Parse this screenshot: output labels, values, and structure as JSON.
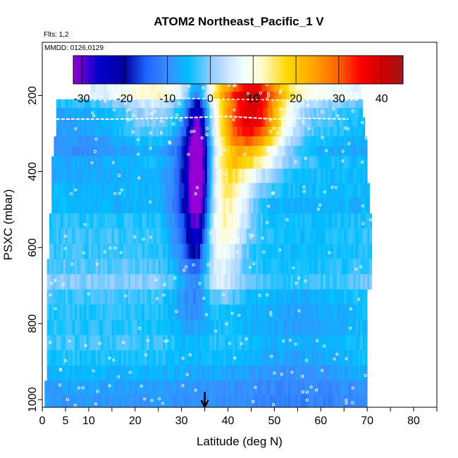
{
  "chart_data": {
    "type": "heatmap",
    "title": "ATOM2 Northeast_Pacific_1 V",
    "flights_label": "Flts: 1,2",
    "dates_label": "MMDD: 0126,0129",
    "xlabel": "Latitude (deg N)",
    "ylabel": "PSXC (mbar)",
    "xlim": [
      0,
      85
    ],
    "ylim": [
      1020,
      60
    ],
    "x_ticks": [
      0,
      5,
      10,
      20,
      30,
      40,
      50,
      60,
      70,
      80
    ],
    "y_ticks": [
      200,
      400,
      600,
      800,
      1000
    ],
    "colorbar": {
      "min": -32,
      "max": 45,
      "ticks": [
        -30,
        -20,
        -10,
        0,
        10,
        20,
        30,
        40
      ],
      "stops": [
        {
          "v": -32,
          "c": "#9400d3"
        },
        {
          "v": -26,
          "c": "#0000cd"
        },
        {
          "v": -20,
          "c": "#0000a0"
        },
        {
          "v": -15,
          "c": "#1e64ff"
        },
        {
          "v": -10,
          "c": "#3a8cff"
        },
        {
          "v": -5,
          "c": "#00bfff"
        },
        {
          "v": 0,
          "c": "#8ecbff"
        },
        {
          "v": 5,
          "c": "#d6ecff"
        },
        {
          "v": 8,
          "c": "#f4ffff"
        },
        {
          "v": 12,
          "c": "#fffacd"
        },
        {
          "v": 18,
          "c": "#ffd700"
        },
        {
          "v": 24,
          "c": "#ffa500"
        },
        {
          "v": 30,
          "c": "#ff6000"
        },
        {
          "v": 35,
          "c": "#ff0000"
        },
        {
          "v": 40,
          "c": "#d00000"
        },
        {
          "v": 45,
          "c": "#a01818"
        }
      ]
    },
    "marker": {
      "x": 35,
      "label": "arrow"
    },
    "pressure_levels": [
      {
        "p": 180,
        "x0": 10.3,
        "x1": 68.5,
        "base": 4
      },
      {
        "p": 200,
        "x0": 10.3,
        "x1": 68.5,
        "base": 4
      },
      {
        "p": 220,
        "x0": 3,
        "x1": 69,
        "base": -4
      },
      {
        "p": 245,
        "x0": 3,
        "x1": 69,
        "base": -7
      },
      {
        "p": 270,
        "x0": 3,
        "x1": 69.5,
        "base": -8
      },
      {
        "p": 295,
        "x0": 3,
        "x1": 69.5,
        "base": -8
      },
      {
        "p": 320,
        "x0": 2.5,
        "x1": 70,
        "base": -9
      },
      {
        "p": 345,
        "x0": 2.5,
        "x1": 70,
        "base": -10
      },
      {
        "p": 375,
        "x0": 2,
        "x1": 70,
        "base": -7
      },
      {
        "p": 410,
        "x0": 2,
        "x1": 70,
        "base": -7
      },
      {
        "p": 450,
        "x0": 2,
        "x1": 70.5,
        "base": -6
      },
      {
        "p": 490,
        "x0": 2,
        "x1": 70.5,
        "base": -6
      },
      {
        "p": 530,
        "x0": 1.5,
        "x1": 71,
        "base": -4
      },
      {
        "p": 570,
        "x0": 1.5,
        "x1": 71,
        "base": -3
      },
      {
        "p": 610,
        "x0": 1.5,
        "x1": 71,
        "base": -3
      },
      {
        "p": 650,
        "x0": 1,
        "x1": 71,
        "base": -2
      },
      {
        "p": 690,
        "x0": 1,
        "x1": 71,
        "base": 0
      },
      {
        "p": 730,
        "x0": 1,
        "x1": 70,
        "base": -3
      },
      {
        "p": 770,
        "x0": 1,
        "x1": 70,
        "base": -4
      },
      {
        "p": 810,
        "x0": 1,
        "x1": 70,
        "base": -4
      },
      {
        "p": 850,
        "x0": 1,
        "x1": 70,
        "base": -3
      },
      {
        "p": 890,
        "x0": 1,
        "x1": 70,
        "base": -4
      },
      {
        "p": 930,
        "x0": 1,
        "x1": 70,
        "base": -6
      },
      {
        "p": 970,
        "x0": 0.5,
        "x1": 70,
        "base": -8
      },
      {
        "p": 1005,
        "x0": 0.5,
        "x1": 70,
        "base": -9
      }
    ]
  }
}
